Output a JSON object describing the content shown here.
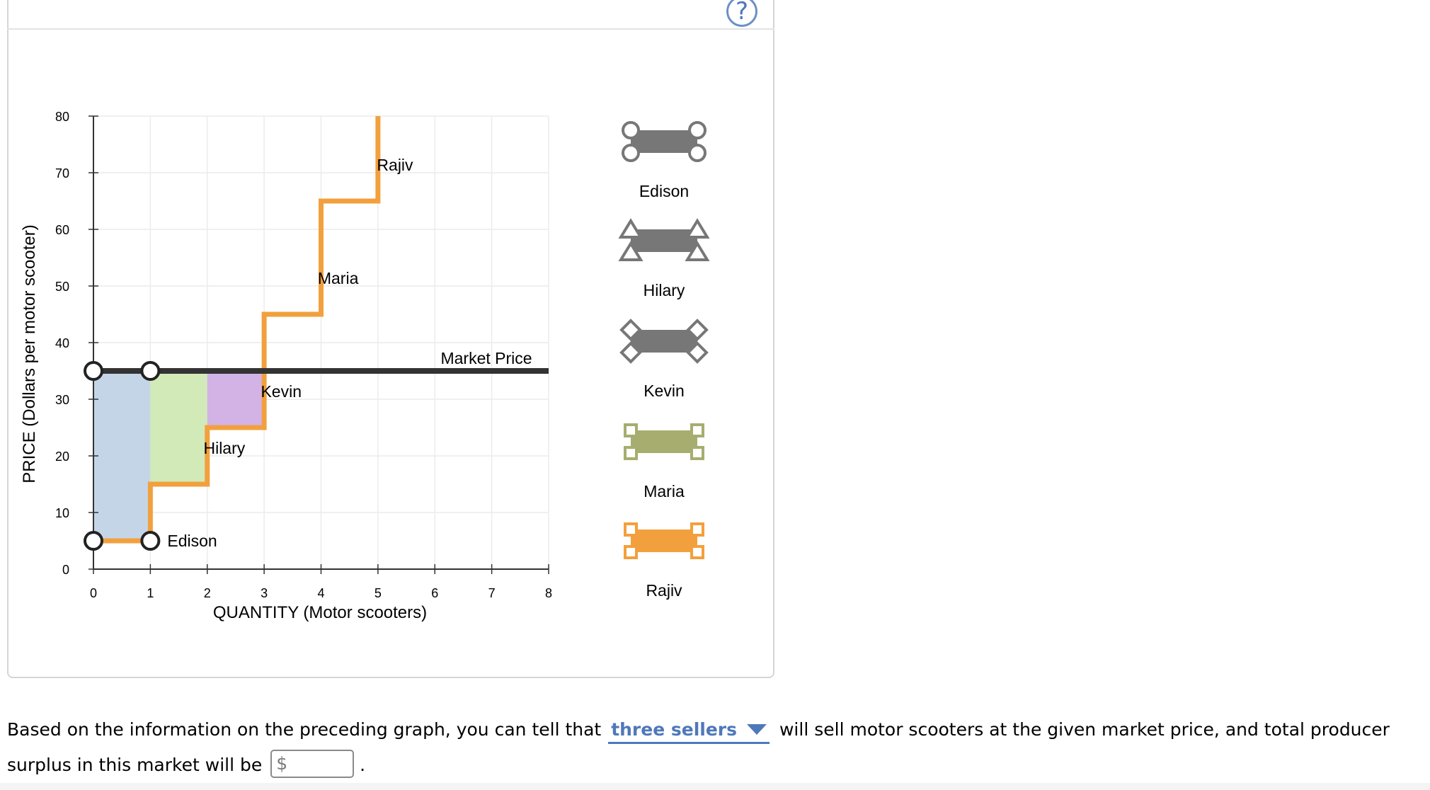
{
  "chart_data": {
    "type": "line",
    "subtype": "step-supply-curve",
    "xlabel": "QUANTITY (Motor scooters)",
    "ylabel": "PRICE (Dollars per motor scooter)",
    "xlim": [
      0,
      8
    ],
    "ylim": [
      0,
      80
    ],
    "x_ticks": [
      0,
      1,
      2,
      3,
      4,
      5,
      6,
      7,
      8
    ],
    "y_ticks": [
      0,
      10,
      20,
      30,
      40,
      50,
      60,
      70,
      80
    ],
    "grid": true,
    "supply_curve": {
      "color": "#f2a03d",
      "points": [
        [
          0,
          5
        ],
        [
          1,
          5
        ],
        [
          1,
          15
        ],
        [
          2,
          15
        ],
        [
          2,
          25
        ],
        [
          3,
          25
        ],
        [
          3,
          45
        ],
        [
          4,
          45
        ],
        [
          4,
          65
        ],
        [
          5,
          65
        ],
        [
          5,
          80
        ]
      ]
    },
    "market_price": {
      "label": "Market Price",
      "value": 35,
      "color": "#333333"
    },
    "seller_labels": [
      {
        "name": "Edison",
        "x": 1.12,
        "y": 5
      },
      {
        "name": "Hilary",
        "x": 2.3,
        "y": 15
      },
      {
        "name": "Kevin",
        "x": 3.3,
        "y": 25
      },
      {
        "name": "Maria",
        "x": 4.3,
        "y": 45
      },
      {
        "name": "Rajiv",
        "x": 5.3,
        "y": 65
      }
    ],
    "surplus_regions": [
      {
        "seller": "Edison",
        "x": [
          0,
          1
        ],
        "y": [
          5,
          35
        ],
        "color": "#c5d5e8"
      },
      {
        "seller": "Hilary",
        "x": [
          1,
          2
        ],
        "y": [
          15,
          35
        ],
        "color": "#d2eab8"
      },
      {
        "seller": "Kevin",
        "x": [
          2,
          3
        ],
        "y": [
          25,
          35
        ],
        "color": "#d3b3e6"
      }
    ],
    "placed_markers": [
      {
        "seller": "Edison",
        "corners": [
          [
            0,
            5
          ],
          [
            1,
            5
          ],
          [
            0,
            35
          ],
          [
            1,
            35
          ]
        ]
      }
    ]
  },
  "legend": {
    "items": [
      {
        "name": "Edison",
        "shape": "circle",
        "fill": "#777777",
        "stroke": "#777777"
      },
      {
        "name": "Hilary",
        "shape": "triangle",
        "fill": "#777777",
        "stroke": "#777777"
      },
      {
        "name": "Kevin",
        "shape": "diamond",
        "fill": "#777777",
        "stroke": "#777777"
      },
      {
        "name": "Maria",
        "shape": "square",
        "fill": "#a7ad6e",
        "stroke": "#a7ad6e"
      },
      {
        "name": "Rajiv",
        "shape": "square",
        "fill": "#f2a03d",
        "stroke": "#f2a03d"
      }
    ]
  },
  "help": {
    "icon": "question-mark-icon",
    "glyph": "?"
  },
  "question": {
    "part1": "Based on the information on the preceding graph, you can tell that",
    "dropdown_value": "three sellers",
    "part2": "will sell motor scooters at the given market price, and total producer surplus in this market will be",
    "currency_symbol": "$",
    "answer_value": "",
    "end": "."
  }
}
